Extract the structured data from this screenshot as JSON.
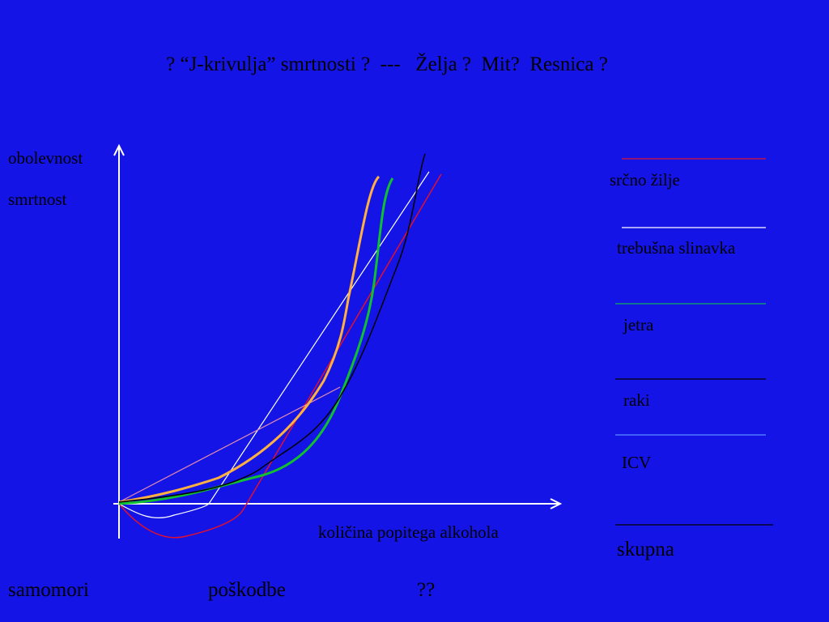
{
  "header": {
    "title": "? “J-krivulja” smrtnosti ?  ---   Želja ?  Mit?  Resnica ?"
  },
  "axes": {
    "y_labels": [
      "obolevnost",
      "smrtnost"
    ],
    "x_label": "količina popitega alkohola"
  },
  "legend": {
    "items": [
      "srčno žilje",
      "trebušna slinavka",
      "jetra",
      "raki",
      "ICV",
      "skupna"
    ]
  },
  "footer": {
    "items": [
      "samomori",
      "poškodbe",
      "??"
    ]
  }
}
